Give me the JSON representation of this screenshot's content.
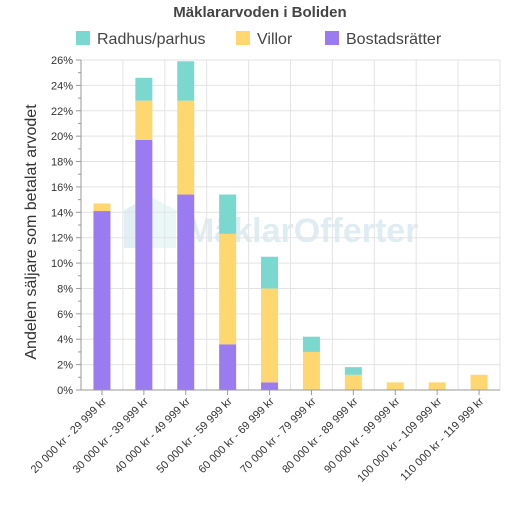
{
  "chart_data": {
    "type": "bar",
    "stacked": true,
    "title": "Mäklararvoden i Boliden",
    "ylabel": "Andelen säljare som betalat arvodet",
    "xlabel": "",
    "ylim": [
      0,
      26
    ],
    "yticks": [
      0,
      2,
      4,
      6,
      8,
      10,
      12,
      14,
      16,
      18,
      20,
      22,
      24,
      26
    ],
    "ytick_suffix": "%",
    "grid": true,
    "legend_position": "top",
    "watermark": "MäklarOfferter",
    "categories": [
      "20 000 kr - 29 999 kr",
      "30 000 kr - 39 999 kr",
      "40 000 kr - 49 999 kr",
      "50 000 kr - 59 999 kr",
      "60 000 kr - 69 999 kr",
      "70 000 kr - 79 999 kr",
      "80 000 kr - 89 999 kr",
      "90 000 kr - 99 999 kr",
      "100 000 kr - 109 999 kr",
      "110 000 kr - 119 999 kr"
    ],
    "series": [
      {
        "name": "Bostadsrätter",
        "color": "#9b7bf0",
        "values": [
          14.1,
          19.7,
          15.4,
          3.6,
          0.6,
          0,
          0,
          0,
          0,
          0
        ]
      },
      {
        "name": "Villor",
        "color": "#ffd770",
        "values": [
          0.6,
          3.1,
          7.4,
          8.7,
          7.4,
          3.0,
          1.2,
          0.6,
          0.6,
          1.2
        ]
      },
      {
        "name": "Radhus/parhus",
        "color": "#7bd8cf",
        "values": [
          0,
          1.8,
          3.1,
          3.1,
          2.5,
          1.2,
          0.6,
          0,
          0,
          0
        ]
      }
    ],
    "legend_order": [
      "Radhus/parhus",
      "Villor",
      "Bostadsrätter"
    ]
  }
}
